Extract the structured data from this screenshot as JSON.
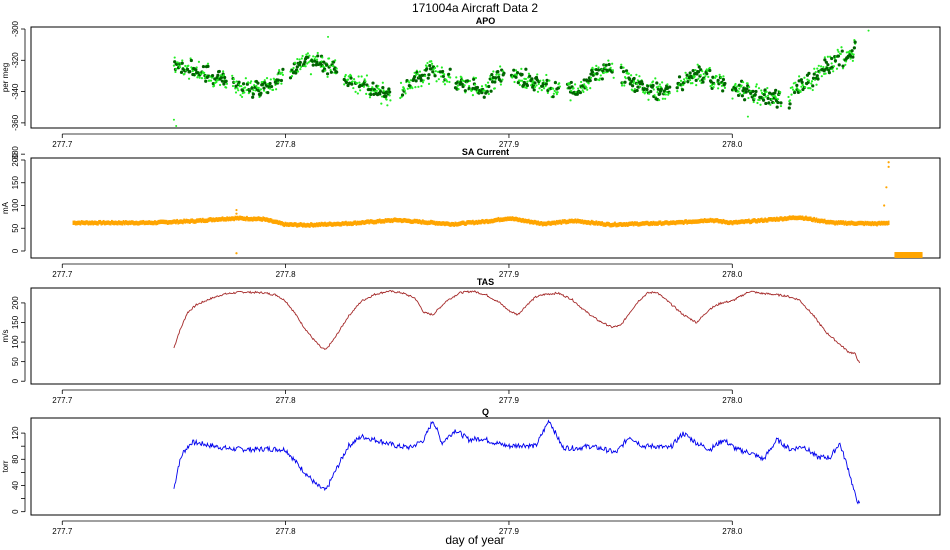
{
  "figure": {
    "title": "171004a   Aircraft Data 2",
    "xlabel": "day of year"
  },
  "colors": {
    "apo_light": "#22ee22",
    "apo_dark": "#006400",
    "sa_current": "#ffa500",
    "tas": "#a52a2a",
    "q": "#0000ee"
  },
  "chart_data": [
    {
      "type": "scatter",
      "title": "APO",
      "ylabel": "per meg",
      "xlim": [
        277.686,
        278.093
      ],
      "ylim": [
        -362,
        -300
      ],
      "x_ticks": [
        277.7,
        277.8,
        277.9,
        278.0
      ],
      "x_tick_labels": [
        "277.7",
        "277.8",
        "277.9",
        "278.0"
      ],
      "y_ticks": [
        -380,
        -360,
        -340,
        -320,
        -300
      ],
      "y_tick_labels": [
        "-380",
        "-360",
        "-340",
        "-320",
        "-300"
      ],
      "x_range_data": [
        277.75,
        278.057
      ],
      "series": [
        {
          "color": "#22ee22",
          "x": [
            277.75,
            277.755,
            277.76,
            277.765,
            277.77,
            277.775,
            277.78,
            277.785,
            277.79,
            277.795,
            277.8,
            277.805,
            277.81,
            277.815,
            277.82,
            277.825,
            277.83,
            277.835,
            277.84,
            277.845,
            277.85,
            277.855,
            277.86,
            277.865,
            277.87,
            277.875,
            277.88,
            277.885,
            277.89,
            277.895,
            277.9,
            277.905,
            277.91,
            277.915,
            277.92,
            277.925,
            277.93,
            277.935,
            277.94,
            277.945,
            277.95,
            277.955,
            277.96,
            277.965,
            277.97,
            277.975,
            277.98,
            277.985,
            277.99,
            277.995,
            278.0,
            278.005,
            278.01,
            278.015,
            278.02,
            278.025,
            278.03,
            278.035,
            278.04,
            278.045,
            278.05,
            278.055
          ],
          "y": [
            -322,
            -325,
            -327,
            -329,
            -331,
            -334,
            -337,
            -338,
            -336,
            -333,
            -328,
            -325,
            -323,
            -322,
            -323,
            -330,
            -333,
            -336,
            -340,
            -342,
            -343,
            -335,
            -330,
            -327,
            -328,
            -332,
            -335,
            -337,
            -339,
            -330,
            -329,
            -331,
            -333,
            -336,
            -339,
            -340,
            -338,
            -332,
            -328,
            -326,
            -330,
            -333,
            -336,
            -339,
            -341,
            -337,
            -332,
            -329,
            -331,
            -334,
            -337,
            -339,
            -341,
            -343,
            -344,
            -345,
            -338,
            -333,
            -327,
            -322,
            -318,
            -313
          ]
        }
      ]
    },
    {
      "type": "scatter",
      "title": "SA Current",
      "ylabel": "mA",
      "xlim": [
        277.686,
        278.093
      ],
      "ylim": [
        -11,
        200
      ],
      "x_ticks": [
        277.7,
        277.8,
        277.9,
        278.0
      ],
      "x_tick_labels": [
        "277.7",
        "277.8",
        "277.9",
        "278.0"
      ],
      "y_ticks": [
        0,
        50,
        100,
        150,
        200
      ],
      "y_tick_labels": [
        "0",
        "50",
        "100",
        "150",
        "200"
      ],
      "series": [
        {
          "color": "#ffa500",
          "x": [
            277.705,
            277.72,
            277.74,
            277.76,
            277.77,
            277.778,
            277.79,
            277.8,
            277.81,
            277.83,
            277.85,
            277.86,
            277.875,
            277.89,
            277.9,
            277.915,
            277.93,
            277.945,
            277.96,
            277.975,
            277.99,
            278.0,
            278.02,
            278.03,
            278.045,
            278.065,
            278.07,
            278.074,
            278.085
          ],
          "y": [
            62,
            62,
            62,
            66,
            70,
            72,
            70,
            58,
            57,
            61,
            68,
            64,
            59,
            65,
            72,
            60,
            66,
            58,
            60,
            62,
            68,
            62,
            70,
            74,
            62,
            60,
            62,
            -10,
            -10
          ]
        }
      ]
    },
    {
      "type": "line",
      "title": "TAS",
      "ylabel": "m/s",
      "xlim": [
        277.686,
        278.093
      ],
      "ylim": [
        -2,
        233
      ],
      "x_ticks": [
        277.7,
        277.8,
        277.9,
        278.0
      ],
      "x_tick_labels": [
        "277.7",
        "277.8",
        "277.9",
        "278.0"
      ],
      "y_ticks": [
        0,
        50,
        100,
        150,
        200
      ],
      "y_tick_labels": [
        "0",
        "50",
        "100",
        "150",
        "200"
      ],
      "series": [
        {
          "color": "#a52a2a",
          "x": [
            277.75,
            277.752,
            277.756,
            277.76,
            277.766,
            277.772,
            277.78,
            277.79,
            277.796,
            277.8,
            277.804,
            277.808,
            277.812,
            277.816,
            277.818,
            277.822,
            277.828,
            277.834,
            277.84,
            277.846,
            277.852,
            277.858,
            277.862,
            277.866,
            277.872,
            277.878,
            277.884,
            277.89,
            277.896,
            277.9,
            277.904,
            277.908,
            277.912,
            277.916,
            277.922,
            277.928,
            277.934,
            277.94,
            277.946,
            277.95,
            277.954,
            277.958,
            277.962,
            277.966,
            277.972,
            277.978,
            277.984,
            277.99,
            277.995,
            278.0,
            278.004,
            278.008,
            278.012,
            278.018,
            278.024,
            278.03,
            278.036,
            278.042,
            278.048,
            278.052,
            278.055,
            278.057
          ],
          "y": [
            85,
            120,
            175,
            195,
            210,
            222,
            228,
            226,
            220,
            205,
            175,
            140,
            110,
            85,
            80,
            110,
            165,
            205,
            222,
            230,
            226,
            212,
            175,
            170,
            205,
            226,
            230,
            220,
            200,
            180,
            170,
            195,
            215,
            222,
            225,
            210,
            180,
            155,
            138,
            142,
            175,
            205,
            225,
            228,
            200,
            170,
            150,
            185,
            200,
            205,
            218,
            230,
            225,
            222,
            218,
            208,
            170,
            125,
            95,
            75,
            70,
            45
          ]
        }
      ]
    },
    {
      "type": "line",
      "title": "Q",
      "ylabel": "torr",
      "xlim": [
        277.686,
        278.093
      ],
      "ylim": [
        -2,
        140
      ],
      "x_ticks": [
        277.7,
        277.8,
        277.9,
        278.0
      ],
      "x_tick_labels": [
        "277.7",
        "277.8",
        "277.9",
        "278.0"
      ],
      "y_ticks": [
        0,
        20,
        40,
        60,
        80,
        100,
        120
      ],
      "y_tick_labels": [
        "0",
        "40",
        "80",
        "120"
      ],
      "series": [
        {
          "color": "#0000ee",
          "x": [
            277.75,
            277.752,
            277.754,
            277.758,
            277.762,
            277.768,
            277.775,
            277.785,
            277.792,
            277.8,
            277.806,
            277.81,
            277.814,
            277.818,
            277.822,
            277.828,
            277.834,
            277.842,
            277.85,
            277.856,
            277.862,
            277.866,
            277.87,
            277.876,
            277.882,
            277.888,
            277.894,
            277.9,
            277.906,
            277.912,
            277.918,
            277.924,
            277.93,
            277.936,
            277.942,
            277.948,
            277.954,
            277.96,
            277.966,
            277.972,
            277.978,
            277.984,
            277.99,
            277.996,
            278.002,
            278.008,
            278.014,
            278.02,
            278.026,
            278.032,
            278.038,
            278.044,
            278.048,
            278.052,
            278.055,
            278.057
          ],
          "y": [
            35,
            70,
            90,
            106,
            104,
            100,
            96,
            95,
            96,
            95,
            70,
            55,
            40,
            32,
            60,
            100,
            115,
            108,
            100,
            98,
            110,
            140,
            105,
            125,
            110,
            112,
            105,
            100,
            102,
            100,
            140,
            98,
            97,
            100,
            96,
            90,
            115,
            100,
            100,
            97,
            120,
            105,
            95,
            110,
            95,
            90,
            80,
            110,
            95,
            100,
            83,
            83,
            105,
            65,
            25,
            10
          ]
        }
      ]
    }
  ]
}
